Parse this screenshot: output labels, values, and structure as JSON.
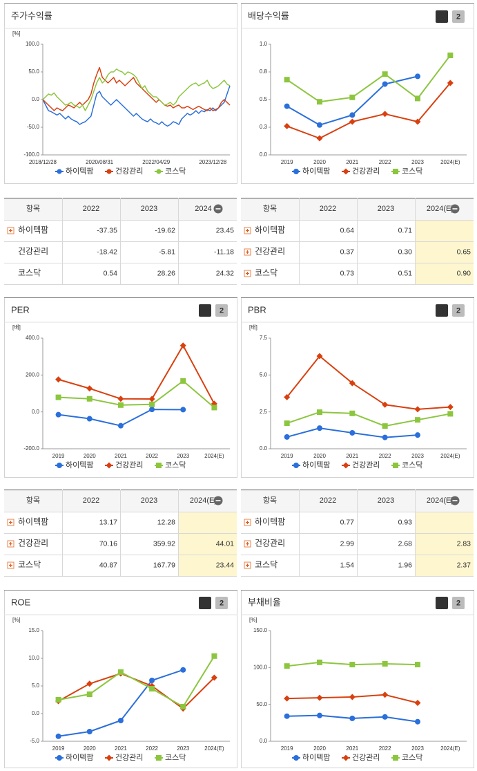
{
  "chart_data": [
    {
      "type": "line",
      "title": "주가수익률",
      "unit": "[%]",
      "categories": [
        "2018/12/28",
        null,
        null,
        null,
        null,
        null,
        null,
        null,
        null,
        null,
        null,
        null,
        null,
        null,
        null,
        null,
        null,
        null,
        null,
        null,
        "2020/08/31",
        null,
        null,
        null,
        null,
        null,
        null,
        null,
        null,
        null,
        null,
        null,
        null,
        null,
        null,
        null,
        null,
        null,
        null,
        null,
        "2022/04/29",
        null,
        null,
        null,
        null,
        null,
        null,
        null,
        null,
        null,
        null,
        null,
        null,
        null,
        null,
        null,
        null,
        null,
        null,
        null,
        "2023/12/28",
        null,
        null,
        null,
        null,
        null,
        null
      ],
      "series": [
        {
          "name": "하이텍팜",
          "color": "#2a6fdb",
          "values": [
            0,
            -10,
            -20,
            -22,
            -25,
            -28,
            -25,
            -30,
            -35,
            -30,
            -35,
            -38,
            -40,
            -45,
            -42,
            -40,
            -35,
            -30,
            -10,
            10,
            15,
            5,
            0,
            -5,
            -10,
            -5,
            0,
            -5,
            -10,
            -15,
            -20,
            -25,
            -30,
            -25,
            -30,
            -35,
            -38,
            -40,
            -35,
            -40,
            -42,
            -45,
            -40,
            -45,
            -48,
            -45,
            -40,
            -42,
            -45,
            -35,
            -30,
            -25,
            -28,
            -25,
            -20,
            -25,
            -20,
            -22,
            -18,
            -20,
            -15,
            -20,
            -15,
            -10,
            -5,
            10,
            25
          ]
        },
        {
          "name": "건강관리",
          "color": "#d9400f",
          "values": [
            0,
            -5,
            -10,
            -15,
            -20,
            -15,
            -18,
            -20,
            -15,
            -10,
            -12,
            -15,
            -10,
            -5,
            -10,
            -5,
            0,
            10,
            30,
            45,
            58,
            40,
            35,
            30,
            35,
            40,
            30,
            35,
            30,
            25,
            30,
            35,
            40,
            30,
            25,
            20,
            15,
            10,
            5,
            0,
            -5,
            0,
            -5,
            -10,
            -12,
            -10,
            -15,
            -12,
            -10,
            -15,
            -15,
            -12,
            -15,
            -18,
            -15,
            -12,
            -15,
            -18,
            -20,
            -15,
            -20,
            -18,
            -15,
            -5,
            0,
            -5,
            -10
          ]
        },
        {
          "name": "코스닥",
          "color": "#8cc63f",
          "values": [
            0,
            5,
            10,
            8,
            12,
            5,
            0,
            -5,
            -10,
            -8,
            -5,
            -10,
            -12,
            -15,
            -10,
            -20,
            -10,
            0,
            15,
            30,
            40,
            30,
            35,
            45,
            50,
            50,
            55,
            52,
            50,
            45,
            50,
            48,
            45,
            40,
            30,
            20,
            25,
            15,
            10,
            5,
            5,
            0,
            -5,
            -10,
            -8,
            -5,
            -10,
            -5,
            5,
            10,
            15,
            20,
            25,
            28,
            30,
            25,
            28,
            30,
            35,
            25,
            20,
            22,
            25,
            30,
            35,
            28,
            25
          ]
        }
      ],
      "ylim": [
        -100,
        100
      ],
      "yticks": [
        {
          "value": -100,
          "label": "-100.0"
        },
        {
          "value": -50,
          "label": "-50.0"
        },
        {
          "value": 0,
          "label": "0.0"
        },
        {
          "value": 50,
          "label": "50.0"
        },
        {
          "value": 100,
          "label": "100.0"
        }
      ],
      "grid": false,
      "legend": "bottom"
    },
    {
      "type": "line",
      "title": "배당수익률",
      "buttons": [
        "1",
        "2"
      ],
      "categories": [
        "2019",
        "2020",
        "2021",
        "2022",
        "2023",
        "2024(E)"
      ],
      "series": [
        {
          "name": "하이텍팜",
          "color": "#2a6fdb",
          "marker": "circle",
          "values": [
            0.44,
            0.27,
            0.36,
            0.64,
            0.71,
            null
          ]
        },
        {
          "name": "건강관리",
          "color": "#d9400f",
          "marker": "diamond",
          "values": [
            0.26,
            0.15,
            0.3,
            0.37,
            0.3,
            0.65
          ]
        },
        {
          "name": "코스닥",
          "color": "#8cc63f",
          "marker": "square",
          "values": [
            0.68,
            0.48,
            0.52,
            0.73,
            0.51,
            0.9
          ]
        }
      ],
      "ylim": [
        0,
        1
      ],
      "yticks": [
        {
          "value": 0,
          "label": "0.0"
        },
        {
          "value": 0.25,
          "label": "0.3"
        },
        {
          "value": 0.5,
          "label": "0.5"
        },
        {
          "value": 0.75,
          "label": "0.8"
        },
        {
          "value": 1,
          "label": "1.0"
        }
      ],
      "grid": false,
      "legend": "bottom"
    },
    {
      "type": "line",
      "title": "PER",
      "unit": "[배]",
      "buttons": [
        "1",
        "2"
      ],
      "categories": [
        "2019",
        "2020",
        "2021",
        "2022",
        "2023",
        "2024(E)"
      ],
      "series": [
        {
          "name": "하이텍팜",
          "color": "#2a6fdb",
          "marker": "circle",
          "values": [
            -15,
            -37,
            -75,
            13.17,
            12.28,
            null
          ]
        },
        {
          "name": "건강관리",
          "color": "#d9400f",
          "marker": "diamond",
          "values": [
            176,
            127,
            71,
            70.16,
            359.92,
            44.01
          ]
        },
        {
          "name": "코스닥",
          "color": "#8cc63f",
          "marker": "square",
          "values": [
            79,
            71,
            37,
            40.87,
            167.79,
            23.44
          ]
        }
      ],
      "ylim": [
        -200,
        400
      ],
      "yticks": [
        {
          "value": -200,
          "label": "-200.0"
        },
        {
          "value": 0,
          "label": "0.0"
        },
        {
          "value": 200,
          "label": "200.0"
        },
        {
          "value": 400,
          "label": "400.0"
        }
      ],
      "grid": false,
      "legend": "bottom"
    },
    {
      "type": "line",
      "title": "PBR",
      "unit": "[배]",
      "buttons": [
        "1",
        "2"
      ],
      "categories": [
        "2019",
        "2020",
        "2021",
        "2022",
        "2023",
        "2024(E)"
      ],
      "series": [
        {
          "name": "하이텍팜",
          "color": "#2a6fdb",
          "marker": "circle",
          "values": [
            0.8,
            1.4,
            1.08,
            0.77,
            0.93,
            null
          ]
        },
        {
          "name": "건강관리",
          "color": "#d9400f",
          "marker": "diamond",
          "values": [
            3.5,
            6.28,
            4.45,
            2.99,
            2.68,
            2.83
          ]
        },
        {
          "name": "코스닥",
          "color": "#8cc63f",
          "marker": "square",
          "values": [
            1.73,
            2.48,
            2.4,
            1.54,
            1.96,
            2.37
          ]
        }
      ],
      "ylim": [
        0,
        7.5
      ],
      "yticks": [
        {
          "value": 0,
          "label": "0.0"
        },
        2.5,
        {
          "value": 5,
          "label": "5.0"
        },
        7.5
      ],
      "grid": false,
      "legend": "bottom"
    },
    {
      "type": "line",
      "title": "ROE",
      "unit": "[%]",
      "buttons": [
        "1",
        "2"
      ],
      "categories": [
        "2019",
        "2020",
        "2021",
        "2022",
        "2023",
        "2024(E)"
      ],
      "series": [
        {
          "name": "하이텍팜",
          "color": "#2a6fdb",
          "marker": "circle",
          "values": [
            -4.1,
            -3.25,
            -1.25,
            6.0,
            7.9,
            null
          ]
        },
        {
          "name": "건강관리",
          "color": "#d9400f",
          "marker": "diamond",
          "values": [
            2.25,
            5.4,
            7.25,
            5.0,
            0.9,
            6.5
          ]
        },
        {
          "name": "코스닥",
          "color": "#8cc63f",
          "marker": "square",
          "values": [
            2.5,
            3.5,
            7.5,
            4.5,
            1.25,
            10.4
          ]
        }
      ],
      "ylim": [
        -5,
        15
      ],
      "yticks": [
        {
          "value": -5,
          "label": "-5.0"
        },
        {
          "value": 0,
          "label": "0.0"
        },
        {
          "value": 5,
          "label": "5.0"
        },
        {
          "value": 10,
          "label": "10.0"
        },
        {
          "value": 15,
          "label": "15.0"
        }
      ],
      "grid": false,
      "legend": "bottom"
    },
    {
      "type": "line",
      "title": "부채비율",
      "unit": "[%]",
      "buttons": [
        "1",
        "2"
      ],
      "categories": [
        "2019",
        "2020",
        "2021",
        "2022",
        "2023",
        "2024(E)"
      ],
      "series": [
        {
          "name": "하이텍팜",
          "color": "#2a6fdb",
          "marker": "circle",
          "values": [
            34,
            35,
            31,
            33,
            26.5,
            null
          ]
        },
        {
          "name": "건강관리",
          "color": "#d9400f",
          "marker": "diamond",
          "values": [
            58,
            59,
            60,
            63,
            52,
            null
          ]
        },
        {
          "name": "코스닥",
          "color": "#8cc63f",
          "marker": "square",
          "values": [
            102,
            107,
            104,
            105,
            104,
            null
          ]
        }
      ],
      "ylim": [
        0,
        150
      ],
      "yticks": [
        {
          "value": 0,
          "label": "0.0"
        },
        {
          "value": 50,
          "label": "50.0"
        },
        {
          "value": 100,
          "label": "100.0"
        },
        {
          "value": 150,
          "label": "150.0"
        }
      ],
      "grid": false,
      "legend": "bottom"
    }
  ],
  "tables": [
    {
      "headers": [
        "항목",
        "2022",
        "2023",
        "2024"
      ],
      "row_icons": [
        true,
        false,
        false
      ],
      "highlight_last": false,
      "rows": [
        [
          "하이텍팜",
          "-37.35",
          "-19.62",
          "23.45"
        ],
        [
          "건강관리",
          "-18.42",
          "-5.81",
          "-11.18"
        ],
        [
          "코스닥",
          "0.54",
          "28.26",
          "24.32"
        ]
      ]
    },
    {
      "headers": [
        "항목",
        "2022",
        "2023",
        "2024(E)"
      ],
      "row_icons": [
        true,
        true,
        true
      ],
      "highlight_last": true,
      "rows": [
        [
          "하이텍팜",
          "0.64",
          "0.71",
          null
        ],
        [
          "건강관리",
          "0.37",
          "0.30",
          "0.65"
        ],
        [
          "코스닥",
          "0.73",
          "0.51",
          "0.90"
        ]
      ]
    },
    {
      "headers": [
        "항목",
        "2022",
        "2023",
        "2024(E)"
      ],
      "row_icons": [
        true,
        true,
        true
      ],
      "highlight_last": true,
      "rows": [
        [
          "하이텍팜",
          "13.17",
          "12.28",
          null
        ],
        [
          "건강관리",
          "70.16",
          "359.92",
          "44.01"
        ],
        [
          "코스닥",
          "40.87",
          "167.79",
          "23.44"
        ]
      ]
    },
    {
      "headers": [
        "항목",
        "2022",
        "2023",
        "2024(E)"
      ],
      "row_icons": [
        true,
        true,
        true
      ],
      "highlight_last": true,
      "rows": [
        [
          "하이텍팜",
          "0.77",
          "0.93",
          null
        ],
        [
          "건강관리",
          "2.99",
          "2.68",
          "2.83"
        ],
        [
          "코스닥",
          "1.54",
          "1.96",
          "2.37"
        ]
      ]
    }
  ]
}
